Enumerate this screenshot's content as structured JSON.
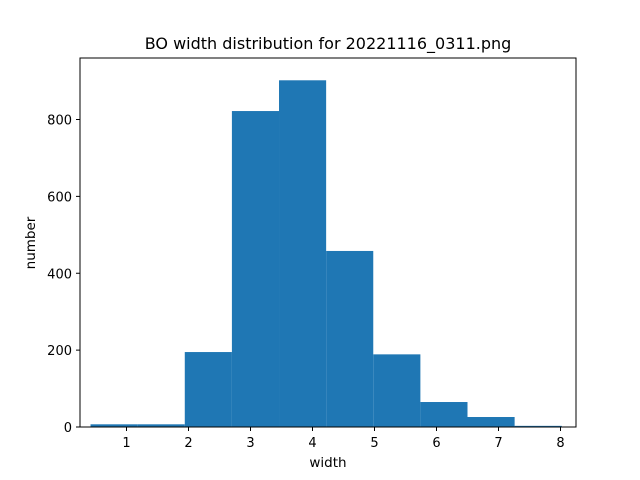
{
  "chart_data": {
    "type": "bar",
    "title": "BO width distribution for 20221116_0311.png",
    "xlabel": "width",
    "ylabel": "number",
    "xlim": [
      0.25,
      8.25
    ],
    "ylim": [
      0,
      960
    ],
    "xticks": [
      1,
      2,
      3,
      4,
      5,
      6,
      7,
      8
    ],
    "yticks": [
      0,
      200,
      400,
      600,
      800
    ],
    "grid": false,
    "color": "#1f77b4",
    "bins": [
      {
        "x0": 0.42,
        "x1": 1.18,
        "value": 7
      },
      {
        "x0": 1.18,
        "x1": 1.94,
        "value": 7
      },
      {
        "x0": 1.94,
        "x1": 2.7,
        "value": 195
      },
      {
        "x0": 2.7,
        "x1": 3.46,
        "value": 822
      },
      {
        "x0": 3.46,
        "x1": 4.22,
        "value": 902
      },
      {
        "x0": 4.22,
        "x1": 4.98,
        "value": 458
      },
      {
        "x0": 4.98,
        "x1": 5.74,
        "value": 189
      },
      {
        "x0": 5.74,
        "x1": 6.5,
        "value": 65
      },
      {
        "x0": 6.5,
        "x1": 7.26,
        "value": 26
      },
      {
        "x0": 7.26,
        "x1": 8.02,
        "value": 3
      }
    ]
  }
}
